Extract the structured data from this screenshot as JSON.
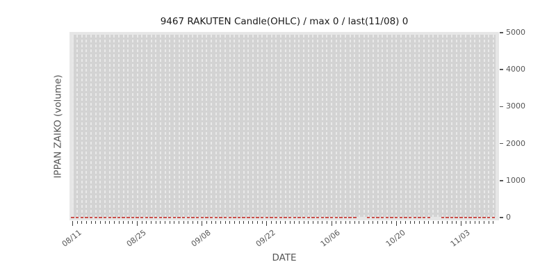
{
  "chart_data": {
    "type": "candlestick",
    "title": "9467 RAKUTEN Candle(OHLC) / max 0 / last(11/08) 0",
    "xlabel": "DATE",
    "ylabel": "IPPAN ZAIKO (volume)",
    "x_tick_labels": [
      "08/11",
      "08/25",
      "09/08",
      "09/22",
      "10/06",
      "10/20",
      "11/03"
    ],
    "x_major_day_indices": [
      0,
      14,
      28,
      42,
      56,
      70,
      84
    ],
    "n_days": 92,
    "missing_day_indices": [
      62,
      63,
      78,
      79
    ],
    "y_ticks": [
      "0",
      "1000",
      "2000",
      "3000",
      "4000",
      "5000"
    ],
    "y_tick_values": [
      0,
      1000,
      2000,
      3000,
      4000,
      5000
    ],
    "ylim": [
      0,
      5000
    ],
    "series": [
      {
        "name": "OHLC candles",
        "description": "every candle flat at 0 (red dash per day at y=0)",
        "constant_value": 0,
        "max": 0,
        "last_date": "11/08",
        "last_value": 0
      }
    ],
    "grid": "vertical dashed gridline per day",
    "legend": "none"
  },
  "colors": {
    "figure_bg": "#ffffff",
    "axes_bg": "#e6e6e6",
    "band_bg": "#d3d3d3",
    "gridline": "#e9e9e9",
    "candle_zero": "#c9504b",
    "x_tick": "#3a3a3a",
    "y_tick": "#555555",
    "tick_label": "#555555",
    "title_text": "#1a1a1a"
  }
}
